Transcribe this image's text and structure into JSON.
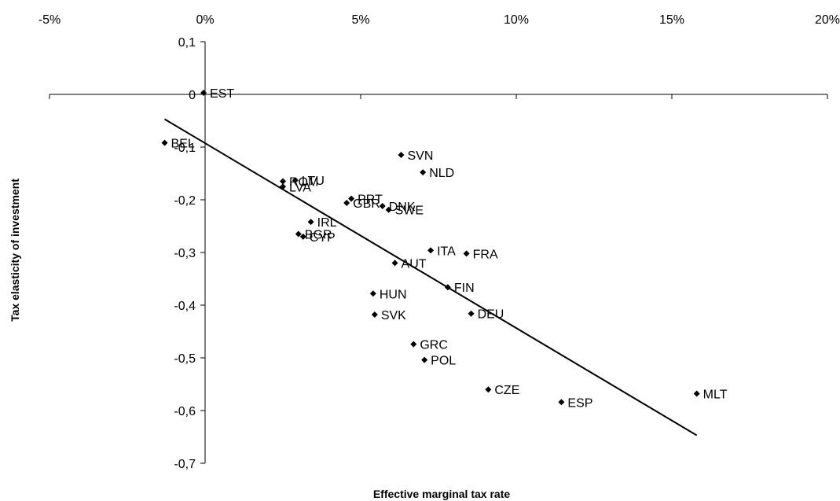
{
  "chart_data": {
    "type": "scatter",
    "title": "",
    "xlabel": "Effective marginal tax rate",
    "ylabel": "Tax elasticity of investment",
    "xlim": [
      -5,
      20
    ],
    "ylim": [
      -0.7,
      0.1
    ],
    "x_ticks": [
      -5,
      0,
      5,
      10,
      15,
      20
    ],
    "x_tick_labels": [
      "-5%",
      "0%",
      "5%",
      "10%",
      "15%",
      "20%"
    ],
    "y_ticks": [
      0.1,
      0,
      -0.1,
      -0.2,
      -0.3,
      -0.4,
      -0.5,
      -0.6,
      -0.7
    ],
    "y_tick_labels": [
      "0,1",
      "0",
      "-0,1",
      "-0,2",
      "-0,3",
      "-0,4",
      "-0,5",
      "-0,6",
      "-0,7"
    ],
    "grid": false,
    "legend": "none",
    "marker_color": "#000000",
    "trendline": {
      "x": [
        -1.3,
        15.8
      ],
      "y": [
        -0.047,
        -0.647
      ]
    },
    "points": [
      {
        "label": "EST",
        "x": -0.05,
        "y": 0.003
      },
      {
        "label": "BEL",
        "x": -1.3,
        "y": -0.092
      },
      {
        "label": "SVN",
        "x": 6.3,
        "y": -0.115
      },
      {
        "label": "NLD",
        "x": 7.0,
        "y": -0.148
      },
      {
        "label": "LTU",
        "x": 2.9,
        "y": -0.163
      },
      {
        "label": "ROM",
        "x": 2.5,
        "y": -0.165
      },
      {
        "label": "LVA",
        "x": 2.5,
        "y": -0.175
      },
      {
        "label": "PRT",
        "x": 4.7,
        "y": -0.198
      },
      {
        "label": "GBR",
        "x": 4.55,
        "y": -0.206
      },
      {
        "label": "DNK",
        "x": 5.7,
        "y": -0.212
      },
      {
        "label": "SWE",
        "x": 5.9,
        "y": -0.219
      },
      {
        "label": "IRL",
        "x": 3.4,
        "y": -0.242
      },
      {
        "label": "BGR",
        "x": 3.0,
        "y": -0.265
      },
      {
        "label": "CYP",
        "x": 3.15,
        "y": -0.27
      },
      {
        "label": "ITA",
        "x": 7.25,
        "y": -0.296
      },
      {
        "label": "FRA",
        "x": 8.4,
        "y": -0.302
      },
      {
        "label": "AUT",
        "x": 6.1,
        "y": -0.32
      },
      {
        "label": "FIN",
        "x": 7.8,
        "y": -0.366
      },
      {
        "label": "HUN",
        "x": 5.4,
        "y": -0.378
      },
      {
        "label": "SVK",
        "x": 5.45,
        "y": -0.418
      },
      {
        "label": "DEU",
        "x": 8.55,
        "y": -0.416
      },
      {
        "label": "GRC",
        "x": 6.7,
        "y": -0.474
      },
      {
        "label": "POL",
        "x": 7.05,
        "y": -0.504
      },
      {
        "label": "CZE",
        "x": 9.1,
        "y": -0.56
      },
      {
        "label": "ESP",
        "x": 11.45,
        "y": -0.584
      },
      {
        "label": "MLT",
        "x": 15.8,
        "y": -0.568
      }
    ]
  }
}
